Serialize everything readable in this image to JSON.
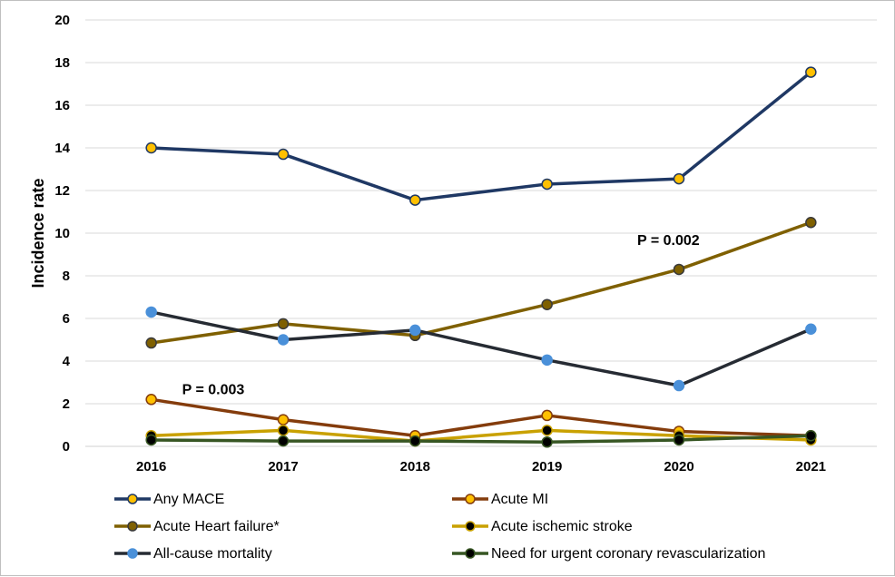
{
  "chart_data": {
    "type": "line",
    "title": "",
    "xlabel": "",
    "ylabel": "Incidence rate",
    "ylim": [
      0,
      20
    ],
    "yticks": [
      0,
      2,
      4,
      6,
      8,
      10,
      12,
      14,
      16,
      18,
      20
    ],
    "grid": true,
    "legend_placement": "bottom",
    "x": [
      "2016",
      "2017",
      "2018",
      "2019",
      "2020",
      "2021"
    ],
    "series": [
      {
        "name": "Any MACE",
        "line_color": "#1F3864",
        "marker_color": "#FFC000",
        "marker_edge": "#1F3864",
        "values": [
          14.0,
          13.7,
          11.55,
          12.3,
          12.55,
          17.55
        ]
      },
      {
        "name": "Acute MI",
        "line_color": "#843C0C",
        "marker_color": "#FFC000",
        "marker_edge": "#843C0C",
        "values": [
          2.2,
          1.25,
          0.5,
          1.45,
          0.7,
          0.5
        ]
      },
      {
        "name": "Acute Heart failure*",
        "line_color": "#7F6000",
        "marker_color": "#7F6000",
        "marker_edge": "#3A3A3A",
        "values": [
          4.85,
          5.75,
          5.2,
          6.65,
          8.3,
          10.5
        ]
      },
      {
        "name": "Acute ischemic stroke",
        "line_color": "#C9A100",
        "marker_color": "#000000",
        "marker_edge": "#C9A100",
        "values": [
          0.5,
          0.75,
          0.25,
          0.75,
          0.5,
          0.3
        ]
      },
      {
        "name": "All-cause mortality",
        "line_color": "#262B33",
        "marker_color": "#4A90D9",
        "marker_edge": "#4A90D9",
        "values": [
          6.3,
          5.0,
          5.45,
          4.05,
          2.85,
          5.5
        ]
      },
      {
        "name": "Need for urgent coronary revascularization",
        "line_color": "#375623",
        "marker_color": "#000000",
        "marker_edge": "#375623",
        "values": [
          0.3,
          0.25,
          0.25,
          0.2,
          0.3,
          0.5
        ]
      }
    ],
    "annotations": [
      {
        "text": "P = 0.003",
        "x": "2016",
        "y": 2.2
      },
      {
        "text": "P = 0.002",
        "x": "2020",
        "y": 8.3
      }
    ]
  }
}
